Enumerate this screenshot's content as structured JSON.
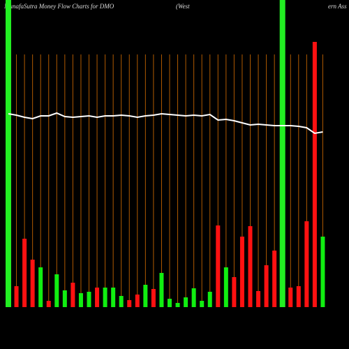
{
  "chart_data": {
    "type": "bar",
    "title": "MunafaSutra  Money Flow  Charts for DMO",
    "subtitle": "(West",
    "subtitle_tail": "ern Ass",
    "ylim": [
      0,
      440
    ],
    "highlight_color": "#22ee22",
    "grid_color": "#b05a00",
    "line_color": "#ffffff",
    "values": [
      440,
      30,
      98,
      68,
      57,
      9,
      47,
      24,
      35,
      20,
      22,
      28,
      28,
      28,
      16,
      10,
      18,
      32,
      26,
      49,
      12,
      6,
      14,
      27,
      9,
      22,
      117,
      57,
      43,
      101,
      116,
      23,
      60,
      81,
      440,
      28,
      30,
      123,
      380,
      101
    ],
    "colors": [
      "#22ee22",
      "#ff1111",
      "#ff1111",
      "#ff1111",
      "#11ee11",
      "#ff1111",
      "#11ee11",
      "#11ee11",
      "#ff1111",
      "#11ee11",
      "#11ee11",
      "#ff1111",
      "#11ee11",
      "#11ee11",
      "#11ee11",
      "#ff1111",
      "#ff1111",
      "#11ee11",
      "#ff1111",
      "#11ee11",
      "#11ee11",
      "#11ee11",
      "#11ee11",
      "#11ee11",
      "#11ee11",
      "#11ee11",
      "#ff1111",
      "#11ee11",
      "#ff1111",
      "#ff1111",
      "#ff1111",
      "#ff1111",
      "#ff1111",
      "#ff1111",
      "#22ee22",
      "#ff1111",
      "#ff1111",
      "#ff1111",
      "#ff1111",
      "#11ee11"
    ],
    "line": [
      277,
      275,
      272,
      270,
      274,
      274,
      278,
      273,
      272,
      273,
      274,
      272,
      274,
      274,
      275,
      274,
      272,
      274,
      275,
      277,
      276,
      275,
      274,
      275,
      274,
      276,
      268,
      269,
      267,
      264,
      261,
      262,
      261,
      260,
      260,
      260,
      259,
      257,
      249,
      251
    ]
  }
}
